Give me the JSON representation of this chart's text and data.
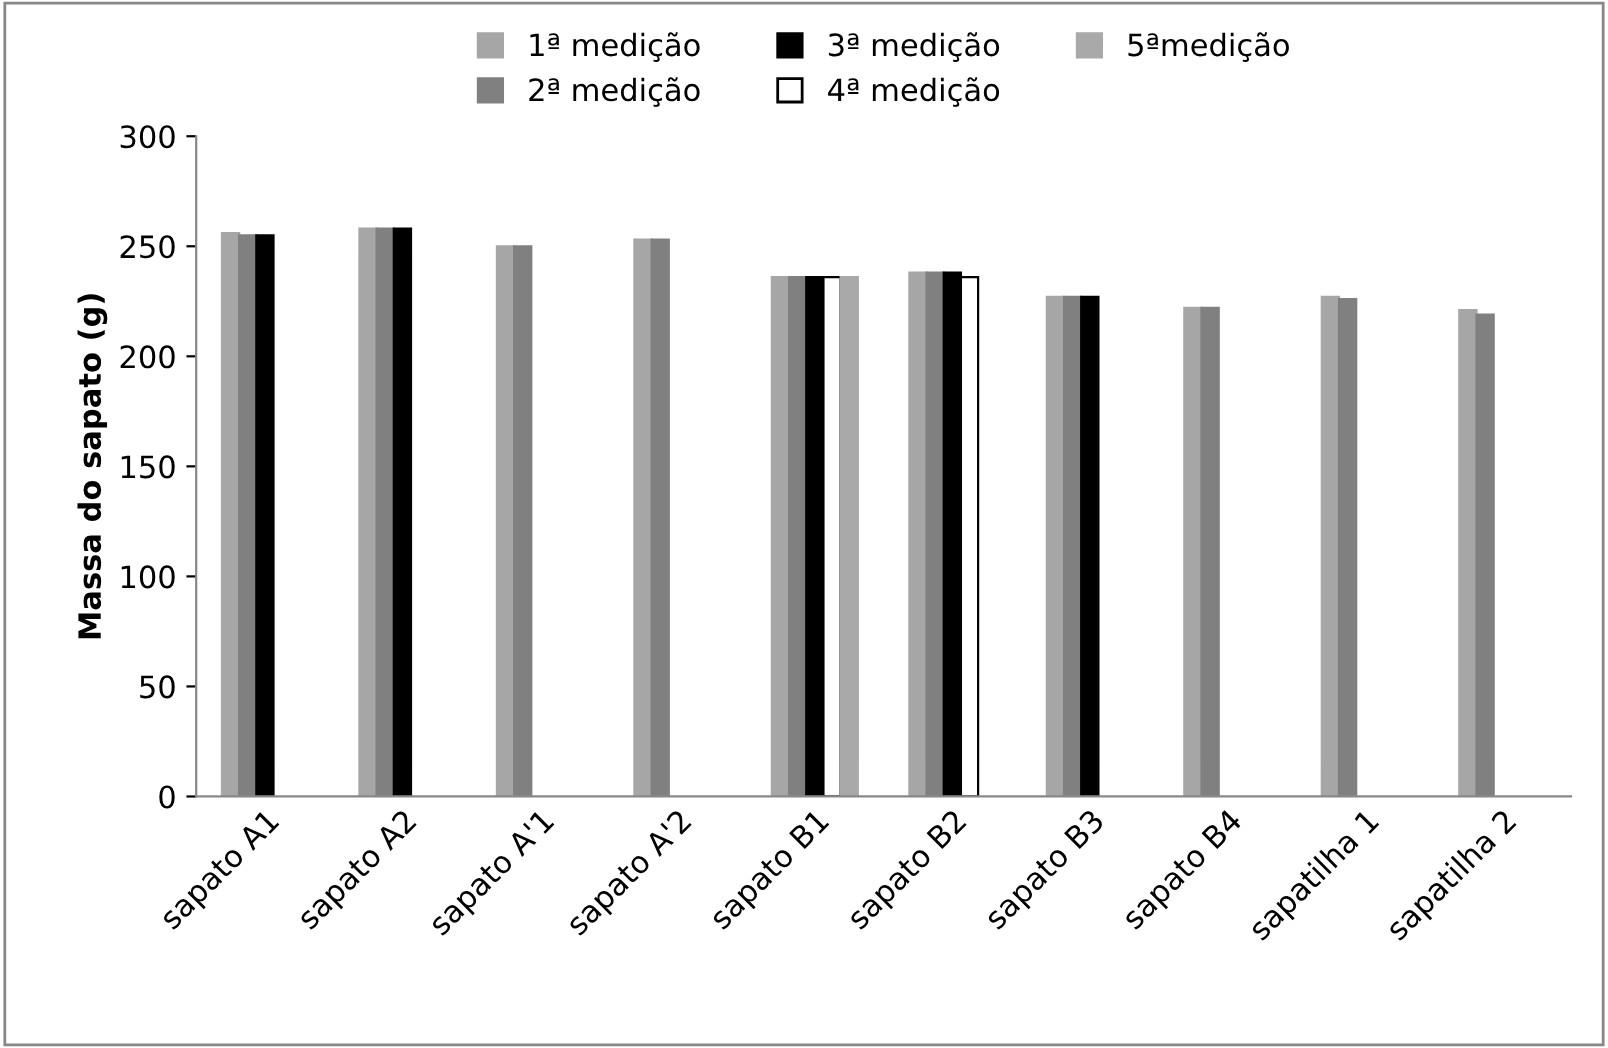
{
  "chart_data": {
    "type": "bar",
    "ylabel": "Massa do sapato (g)",
    "categories": [
      "sapato A1",
      "sapato A2",
      "sapato A'1",
      "sapato A'2",
      "sapato B1",
      "sapato B2",
      "sapato B3",
      "sapato B4",
      "sapatilha 1",
      "sapatilha 2"
    ],
    "series": [
      {
        "name": "1ª medição",
        "color": "#a6a6a6",
        "values": [
          256,
          258,
          250,
          253,
          236,
          238,
          227,
          222,
          227,
          221
        ]
      },
      {
        "name": "2ª medição",
        "color": "#808080",
        "values": [
          255,
          258,
          250,
          253,
          236,
          238,
          227,
          222,
          226,
          219
        ]
      },
      {
        "name": "3ª medição",
        "color": "#000000",
        "values": [
          255,
          258,
          null,
          null,
          236,
          238,
          227,
          null,
          null,
          null
        ]
      },
      {
        "name": "4ª medição",
        "color": "#ffffff",
        "values": [
          null,
          null,
          null,
          null,
          236,
          236,
          null,
          null,
          null,
          null
        ]
      },
      {
        "name": "5ªmedição",
        "color": "#a9a9a9",
        "values": [
          null,
          null,
          null,
          null,
          236,
          null,
          null,
          null,
          null,
          null
        ]
      }
    ],
    "ylim": [
      0,
      300
    ],
    "yticks": [
      0,
      50,
      100,
      150,
      200,
      250,
      300
    ],
    "grid": false,
    "legend": "top"
  }
}
